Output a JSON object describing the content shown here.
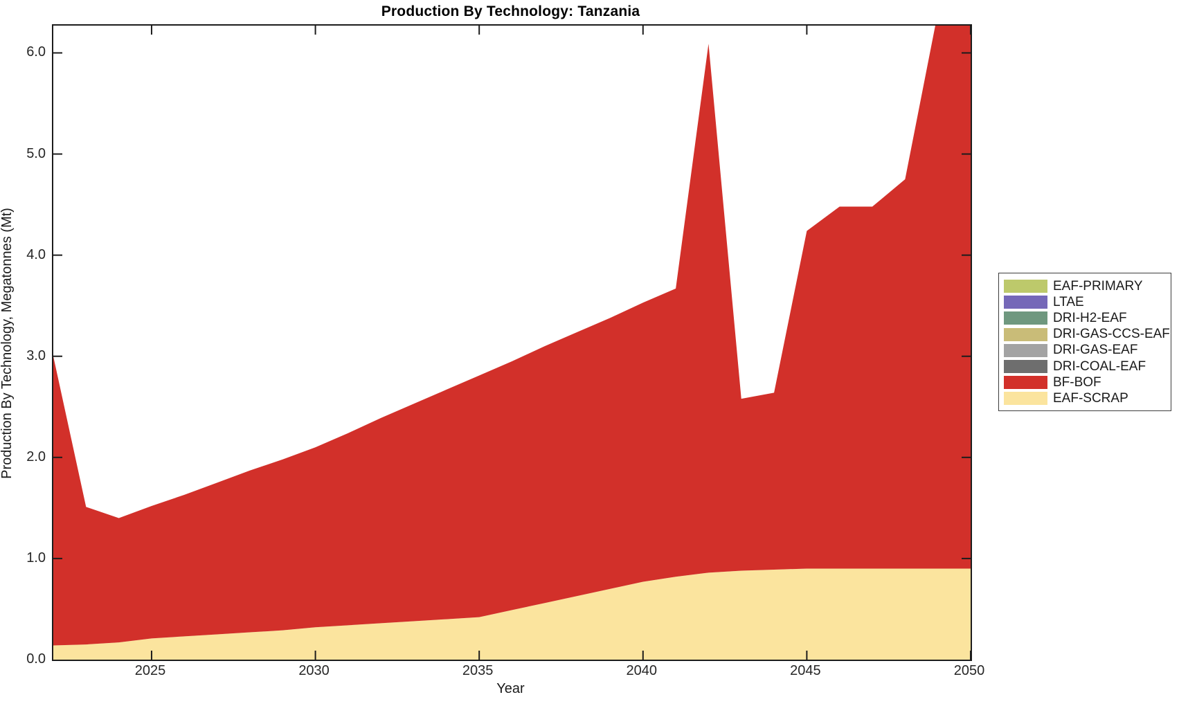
{
  "title": "Production By Technology: Tanzania",
  "chart_data": {
    "type": "area",
    "stacked": true,
    "title": "Production By Technology: Tanzania",
    "xlabel": "Year",
    "ylabel": "Production By Technology, Megatonnes (Mt)",
    "x": [
      2022,
      2023,
      2024,
      2025,
      2026,
      2027,
      2028,
      2029,
      2030,
      2031,
      2032,
      2033,
      2034,
      2035,
      2036,
      2037,
      2038,
      2039,
      2040,
      2041,
      2042,
      2043,
      2044,
      2045,
      2046,
      2047,
      2048,
      2049,
      2050
    ],
    "series": [
      {
        "name": "EAF-SCRAP",
        "color": "#FBE49E",
        "values": [
          0.14,
          0.15,
          0.17,
          0.21,
          0.23,
          0.25,
          0.27,
          0.29,
          0.32,
          0.34,
          0.36,
          0.38,
          0.4,
          0.42,
          0.49,
          0.56,
          0.63,
          0.7,
          0.77,
          0.82,
          0.86,
          0.88,
          0.89,
          0.9,
          0.9,
          0.9,
          0.9,
          0.9,
          0.9
        ]
      },
      {
        "name": "BF-BOF",
        "color": "#D2302A",
        "values": [
          2.86,
          1.36,
          1.23,
          1.31,
          1.4,
          1.5,
          1.6,
          1.69,
          1.78,
          1.9,
          2.03,
          2.15,
          2.27,
          2.39,
          2.46,
          2.54,
          2.61,
          2.68,
          2.76,
          2.85,
          5.23,
          1.7,
          1.75,
          3.34,
          3.58,
          3.58,
          3.85,
          5.5,
          5.5
        ]
      },
      {
        "name": "DRI-COAL-EAF",
        "color": "#6E6E6E",
        "values": [
          0,
          0,
          0,
          0,
          0,
          0,
          0,
          0,
          0,
          0,
          0,
          0,
          0,
          0,
          0,
          0,
          0,
          0,
          0,
          0,
          0,
          0,
          0,
          0,
          0,
          0,
          0,
          0,
          0
        ]
      },
      {
        "name": "DRI-GAS-EAF",
        "color": "#A3A3A3",
        "values": [
          0,
          0,
          0,
          0,
          0,
          0,
          0,
          0,
          0,
          0,
          0,
          0,
          0,
          0,
          0,
          0,
          0,
          0,
          0,
          0,
          0,
          0,
          0,
          0,
          0,
          0,
          0,
          0,
          0
        ]
      },
      {
        "name": "DRI-GAS-CCS-EAF",
        "color": "#C9BC78",
        "values": [
          0,
          0,
          0,
          0,
          0,
          0,
          0,
          0,
          0,
          0,
          0,
          0,
          0,
          0,
          0,
          0,
          0,
          0,
          0,
          0,
          0,
          0,
          0,
          0,
          0,
          0,
          0,
          0,
          0
        ]
      },
      {
        "name": "DRI-H2-EAF",
        "color": "#6F987F",
        "values": [
          0,
          0,
          0,
          0,
          0,
          0,
          0,
          0,
          0,
          0,
          0,
          0,
          0,
          0,
          0,
          0,
          0,
          0,
          0,
          0,
          0,
          0,
          0,
          0,
          0,
          0,
          0,
          0,
          0
        ]
      },
      {
        "name": "LTAE",
        "color": "#7568B8",
        "values": [
          0,
          0,
          0,
          0,
          0,
          0,
          0,
          0,
          0,
          0,
          0,
          0,
          0,
          0,
          0,
          0,
          0,
          0,
          0,
          0,
          0,
          0,
          0,
          0,
          0,
          0,
          0,
          0,
          0
        ]
      },
      {
        "name": "EAF-PRIMARY",
        "color": "#BDC96B",
        "values": [
          0,
          0,
          0,
          0,
          0,
          0,
          0,
          0,
          0,
          0,
          0,
          0,
          0,
          0,
          0,
          0,
          0,
          0,
          0,
          0,
          0,
          0,
          0,
          0,
          0,
          0,
          0,
          0,
          0
        ]
      }
    ],
    "stack_totals_note": "Totals (top of red area): 2022=3.0, 2023=1.51, 2024=1.40, 2030=2.10, 2035=2.81, 2040=3.53, 2041=3.67, 2042=6.09 (spike), 2043=2.58, 2044=2.64, 2045=4.24, 2046=4.48, 2047=4.48, 2048=4.75, 2049-2050 exceed axis and are clipped at top (~6.3)",
    "xlim": [
      2022,
      2050
    ],
    "ylim": [
      0,
      6.27
    ],
    "x_ticks": [
      2025,
      2030,
      2035,
      2040,
      2045,
      2050
    ],
    "x_tick_labels": [
      "2025",
      "2030",
      "2035",
      "2040",
      "2045",
      "2050"
    ],
    "y_ticks": [
      0,
      1,
      2,
      3,
      4,
      5,
      6
    ],
    "y_tick_labels": [
      "0.0",
      "1.0",
      "2.0",
      "3.0",
      "4.0",
      "5.0",
      "6.0"
    ],
    "grid": false,
    "legend_position": "right-outside",
    "legend_entries": [
      {
        "label": "EAF-PRIMARY",
        "color": "#BDC96B"
      },
      {
        "label": "LTAE",
        "color": "#7568B8"
      },
      {
        "label": "DRI-H2-EAF",
        "color": "#6F987F"
      },
      {
        "label": "DRI-GAS-CCS-EAF",
        "color": "#C9BC78"
      },
      {
        "label": "DRI-GAS-EAF",
        "color": "#A3A3A3"
      },
      {
        "label": "DRI-COAL-EAF",
        "color": "#6E6E6E"
      },
      {
        "label": "BF-BOF",
        "color": "#D2302A"
      },
      {
        "label": "EAF-SCRAP",
        "color": "#FBE49E"
      }
    ],
    "axis_color": "#1c1c1c"
  }
}
